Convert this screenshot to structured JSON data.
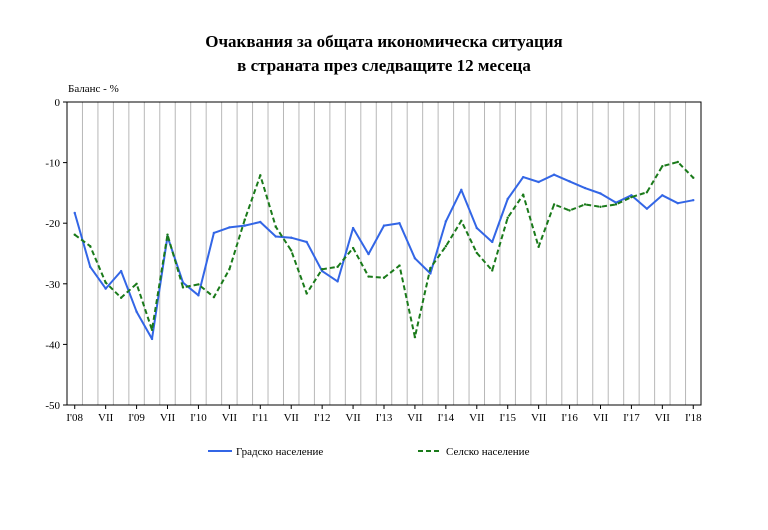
{
  "chart_data": {
    "type": "line",
    "title_line1": "Очаквания за общата икономическа ситуация",
    "title_line2": "в страната през следващите 12 месеца",
    "ylabel": "Баланс - %",
    "ylim": [
      -50,
      0
    ],
    "yticks": [
      0,
      -10,
      -20,
      -30,
      -40,
      -50
    ],
    "xtick_labels": [
      "I'08",
      "VII",
      "I'09",
      "VII",
      "I'10",
      "VII",
      "I'11",
      "VII",
      "I'12",
      "VII",
      "I'13",
      "VII",
      "I'14",
      "VII",
      "I'15",
      "VII",
      "I'16",
      "VII",
      "I'17",
      "VII",
      "I'18"
    ],
    "grid": "vertical",
    "legend_position": "bottom",
    "series": [
      {
        "name": "Градско население",
        "color": "#3366e6",
        "style": "solid",
        "values": [
          -18.3,
          -27.2,
          -30.8,
          -27.9,
          -34.6,
          -39.1,
          -22.2,
          -29.8,
          -31.9,
          -21.6,
          -20.7,
          -20.4,
          -19.8,
          -22.2,
          -22.4,
          -23.1,
          -27.9,
          -29.6,
          -20.8,
          -25.1,
          -20.4,
          -20.0,
          -25.8,
          -28.3,
          -19.7,
          -14.5,
          -20.8,
          -23.1,
          -16.0,
          -12.4,
          -13.2,
          -12.0,
          -13.1,
          -14.2,
          -15.1,
          -16.6,
          -15.4,
          -17.6,
          -15.4,
          -16.7,
          -16.2
        ]
      },
      {
        "name": "Селско население",
        "color": "#1a7a1a",
        "style": "dashed",
        "values": [
          -21.9,
          -23.8,
          -29.8,
          -32.3,
          -30.0,
          -37.6,
          -21.9,
          -30.6,
          -30.1,
          -32.2,
          -27.6,
          -19.4,
          -12.1,
          -20.6,
          -24.5,
          -31.6,
          -27.6,
          -27.2,
          -24.1,
          -28.8,
          -29.0,
          -27.0,
          -38.8,
          -27.4,
          -23.8,
          -19.6,
          -24.9,
          -27.8,
          -19.1,
          -15.3,
          -23.9,
          -16.9,
          -17.9,
          -16.9,
          -17.3,
          -16.9,
          -15.7,
          -14.9,
          -10.6,
          -9.9,
          -12.5
        ]
      }
    ]
  }
}
